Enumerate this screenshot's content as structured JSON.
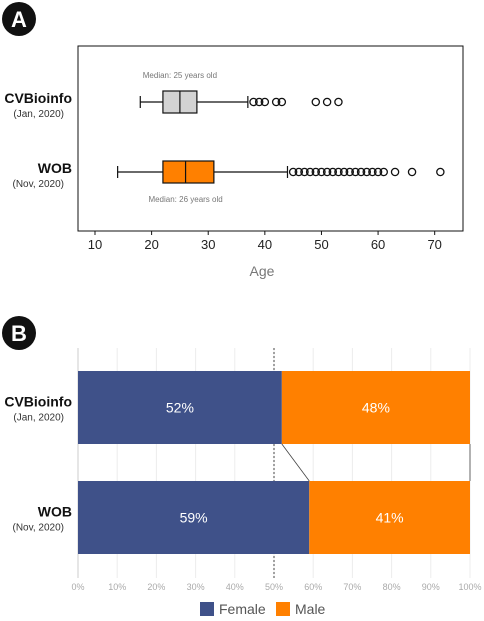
{
  "panel_a_letter": "A",
  "panel_b_letter": "B",
  "chart_data": [
    {
      "type": "box",
      "orientation": "horizontal",
      "xlabel": "Age",
      "xlim": [
        7,
        75
      ],
      "x_ticks": [
        10,
        20,
        30,
        40,
        50,
        60,
        70
      ],
      "groups": [
        {
          "name": "CVBioinfo",
          "subtitle": "(Jan, 2020)",
          "whisker_low": 18,
          "q1": 22,
          "median": 25,
          "q3": 28,
          "whisker_high": 37,
          "outliers": [
            38,
            39,
            40,
            42,
            43,
            49,
            51,
            53
          ],
          "fill": "#d3d3d3",
          "annotation": "Median: 25 years old"
        },
        {
          "name": "WOB",
          "subtitle": "(Nov, 2020)",
          "whisker_low": 14,
          "q1": 22,
          "median": 26,
          "q3": 31,
          "whisker_high": 44,
          "outliers": [
            45,
            46,
            47,
            48,
            49,
            50,
            51,
            52,
            53,
            54,
            55,
            56,
            57,
            58,
            59,
            60,
            61,
            63,
            66,
            71
          ],
          "fill": "#ff8000",
          "annotation": "Median: 26 years old"
        }
      ]
    },
    {
      "type": "bar",
      "orientation": "horizontal",
      "stacked": true,
      "categories": [
        {
          "name": "CVBioinfo",
          "subtitle": "(Jan, 2020)"
        },
        {
          "name": "WOB",
          "subtitle": "(Nov, 2020)"
        }
      ],
      "series": [
        {
          "name": "Female",
          "values": [
            52,
            59
          ],
          "labels": [
            "52%",
            "59%"
          ],
          "color": "#3f5189"
        },
        {
          "name": "Male",
          "values": [
            48,
            41
          ],
          "labels": [
            "48%",
            "41%"
          ],
          "color": "#ff8000"
        }
      ],
      "xlim": [
        0,
        100
      ],
      "x_ticks": [
        "0%",
        "10%",
        "20%",
        "30%",
        "40%",
        "50%",
        "60%",
        "70%",
        "80%",
        "90%",
        "100%"
      ],
      "reference_line": 50,
      "legend_position": "bottom"
    }
  ]
}
